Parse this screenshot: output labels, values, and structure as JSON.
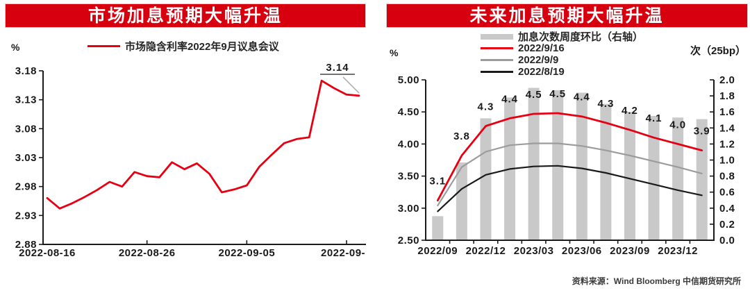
{
  "left_chart": {
    "title": "市场加息预期大幅升温",
    "unit": "%",
    "legend": [
      {
        "label": "市场隐含利率2022年9月议息会议",
        "color": "#e60012",
        "type": "line"
      }
    ],
    "annotation": "3.14"
  },
  "right_chart": {
    "title": "未来加息预期大幅升温",
    "unit_left": "%",
    "unit_right": "次（25bp）",
    "legend": [
      {
        "label": "加息次数周度环比（右轴）",
        "color": "#c9c9c9",
        "type": "bar"
      },
      {
        "label": "2022/9/16",
        "color": "#e60012",
        "type": "line"
      },
      {
        "label": "2022/9/9",
        "color": "#9c9c9c",
        "type": "line"
      },
      {
        "label": "2022/8/19",
        "color": "#1a1a1a",
        "type": "line"
      }
    ]
  },
  "source_note": "资料来源：Wind Bloomberg 中信期货研究所",
  "colors": {
    "banner": "#d7000f",
    "red": "#e60012",
    "bar_gray": "#c9c9c9",
    "line_gray": "#9c9c9c",
    "line_black": "#1a1a1a",
    "axis": "#1a1a1a",
    "leader_gray": "#b0b0b0"
  },
  "chart_data": [
    {
      "type": "line",
      "title": "市场加息预期大幅升温",
      "ylabel": "%",
      "ylim": [
        2.88,
        3.18
      ],
      "y_ticks": [
        "3.18",
        "3.13",
        "3.08",
        "3.03",
        "2.98",
        "2.93",
        "2.88"
      ],
      "x_tick_labels": [
        "2022-08-16",
        "2022-08-26",
        "2022-09-05",
        "2022-09-"
      ],
      "grid": false,
      "legend_position": "top",
      "annotation": {
        "text": "3.14",
        "applies_to": "last point"
      },
      "series": [
        {
          "name": "市场隐含利率2022年9月议息会议",
          "color": "#e60012",
          "values": [
            2.96,
            2.942,
            2.951,
            2.962,
            2.974,
            2.988,
            2.98,
            3.005,
            2.998,
            2.996,
            3.022,
            3.01,
            3.02,
            3.002,
            2.97,
            2.975,
            2.982,
            3.014,
            3.035,
            3.055,
            3.062,
            3.065,
            3.163,
            3.15,
            3.139,
            3.137
          ]
        }
      ]
    },
    {
      "type": "bar+line",
      "title": "未来加息预期大幅升温",
      "ylabel_left": "%",
      "ylabel_right": "次（25bp）",
      "ylim_left": [
        2.5,
        5.0
      ],
      "ylim_right": [
        0.0,
        2.0
      ],
      "y_ticks_left": [
        "5.00",
        "4.50",
        "4.00",
        "3.50",
        "3.00",
        "2.50"
      ],
      "y_ticks_right": [
        "2.0",
        "1.8",
        "1.6",
        "1.4",
        "1.2",
        "1.0",
        "0.8",
        "0.6",
        "0.4",
        "0.2",
        "0.0"
      ],
      "x_labels": [
        "2022/09",
        "2022/12",
        "2023/03",
        "2023/06",
        "2023/09",
        "2023/12"
      ],
      "x_label_every": 2,
      "grid": false,
      "legend_position": "top",
      "bars": {
        "name": "加息次数周度环比（右轴）",
        "axis": "right",
        "color": "#c9c9c9",
        "values": [
          0.3,
          0.97,
          1.52,
          1.78,
          1.9,
          1.87,
          1.84,
          1.7,
          1.6,
          1.55,
          1.53,
          1.51
        ]
      },
      "series": [
        {
          "name": "2022/9/16",
          "axis": "left",
          "color": "#e60012",
          "values": [
            3.12,
            3.82,
            4.28,
            4.4,
            4.47,
            4.48,
            4.43,
            4.33,
            4.22,
            4.1,
            4.0,
            3.9
          ],
          "data_labels": [
            "3.1",
            "3.8",
            "4.3",
            "4.4",
            "4.5",
            "4.5",
            "4.4",
            "4.3",
            "4.2",
            "4.1",
            "4.0",
            "3.9"
          ]
        },
        {
          "name": "2022/9/9",
          "axis": "left",
          "color": "#9c9c9c",
          "values": [
            3.04,
            3.64,
            3.88,
            3.98,
            4.01,
            4.01,
            3.97,
            3.9,
            3.82,
            3.73,
            3.64,
            3.54
          ]
        },
        {
          "name": "2022/8/19",
          "axis": "left",
          "color": "#1a1a1a",
          "values": [
            2.95,
            3.3,
            3.52,
            3.61,
            3.65,
            3.66,
            3.62,
            3.55,
            3.46,
            3.37,
            3.28,
            3.2
          ]
        }
      ]
    }
  ]
}
